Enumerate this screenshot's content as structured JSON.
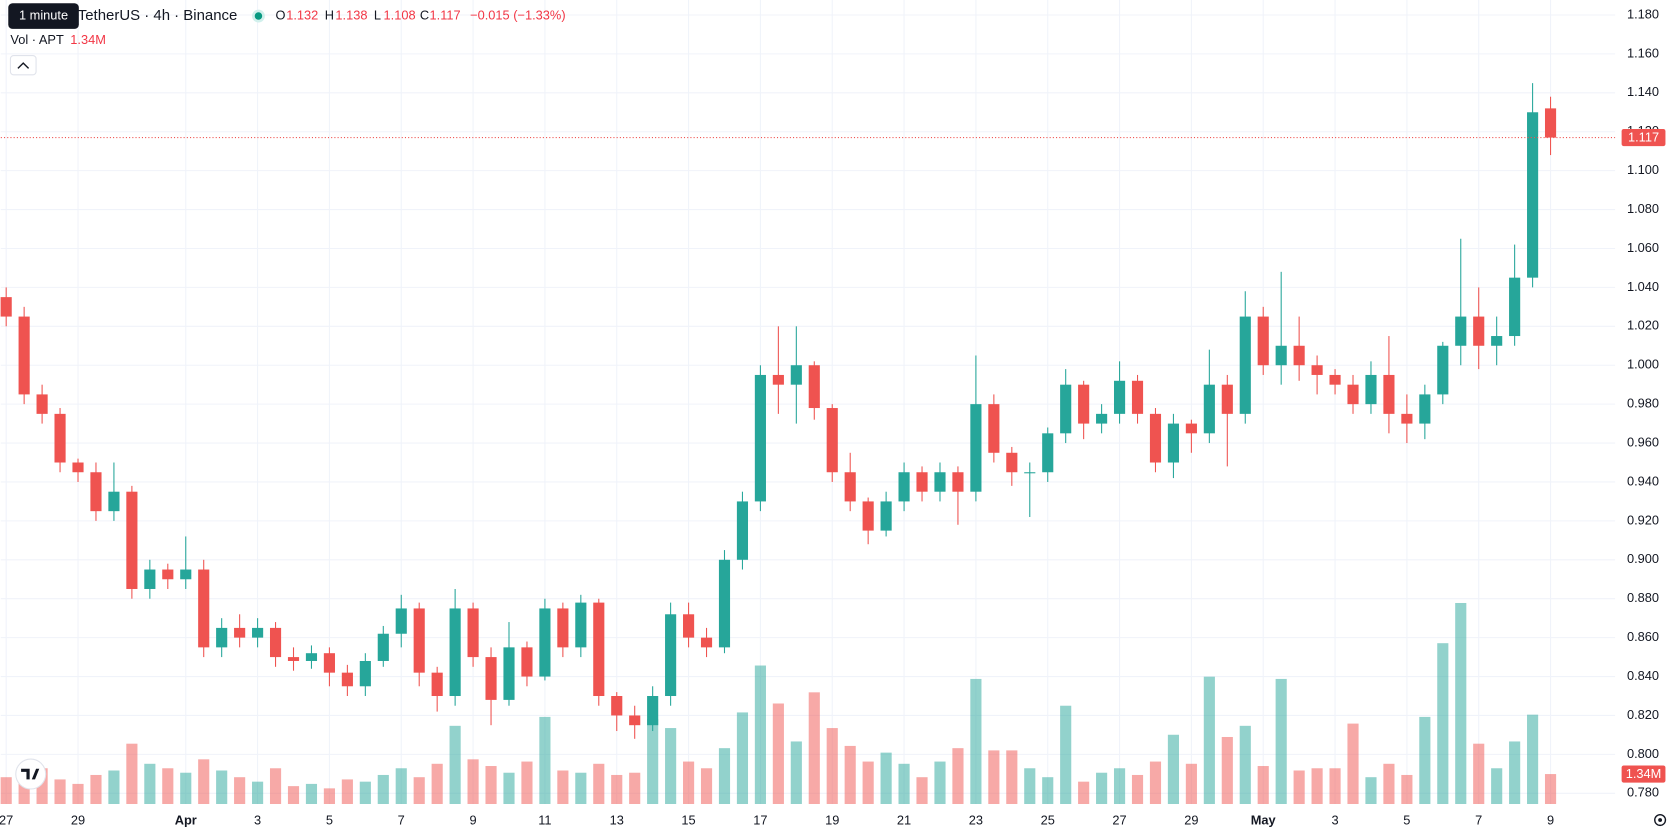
{
  "chart_data": {
    "type": "candlestick",
    "tooltip": "1 minute",
    "title": "TetherUS · 4h · Binance",
    "ohlc_letters": [
      "O",
      "H",
      "L",
      "C"
    ],
    "change": "−0.015 (−1.33%)",
    "volume_title": "Vol · APT",
    "volume_label": "1.34M",
    "colors": {
      "up": "#26a69a",
      "down": "#ef5350"
    },
    "grid": true,
    "last_price_line": true,
    "xlim": [
      -0.3,
      89.6
    ],
    "xticks": [
      {
        "value": 0,
        "label": "27"
      },
      {
        "value": 4,
        "label": "29"
      },
      {
        "value": 10,
        "label": "Apr"
      },
      {
        "value": 14,
        "label": "3"
      },
      {
        "value": 18,
        "label": "5"
      },
      {
        "value": 22,
        "label": "7"
      },
      {
        "value": 26,
        "label": "9"
      },
      {
        "value": 30,
        "label": "11"
      },
      {
        "value": 34,
        "label": "13"
      },
      {
        "value": 38,
        "label": "15"
      },
      {
        "value": 42,
        "label": "17"
      },
      {
        "value": 46,
        "label": "19"
      },
      {
        "value": 50,
        "label": "21"
      },
      {
        "value": 54,
        "label": "23"
      },
      {
        "value": 58,
        "label": "25"
      },
      {
        "value": 62,
        "label": "27"
      },
      {
        "value": 66,
        "label": "29"
      },
      {
        "value": 70,
        "label": "May"
      },
      {
        "value": 74,
        "label": "3"
      },
      {
        "value": 78,
        "label": "5"
      },
      {
        "value": 82,
        "label": "7"
      },
      {
        "value": 86,
        "label": "9"
      }
    ],
    "ylim": [
      0.7745,
      1.1877
    ],
    "yticks": [
      {
        "value": 0.78,
        "label": "0.780"
      },
      {
        "value": 0.8,
        "label": "0.800"
      },
      {
        "value": 0.82,
        "label": "0.820"
      },
      {
        "value": 0.84,
        "label": "0.840"
      },
      {
        "value": 0.86,
        "label": "0.860"
      },
      {
        "value": 0.88,
        "label": "0.880"
      },
      {
        "value": 0.9,
        "label": "0.900"
      },
      {
        "value": 0.92,
        "label": "0.920"
      },
      {
        "value": 0.94,
        "label": "0.940"
      },
      {
        "value": 0.96,
        "label": "0.960"
      },
      {
        "value": 0.98,
        "label": "0.980"
      },
      {
        "value": 1.0,
        "label": "1.000"
      },
      {
        "value": 1.02,
        "label": "1.020"
      },
      {
        "value": 1.04,
        "label": "1.040"
      },
      {
        "value": 1.06,
        "label": "1.060"
      },
      {
        "value": 1.08,
        "label": "1.080"
      },
      {
        "value": 1.1,
        "label": "1.100"
      },
      {
        "value": 1.12,
        "label": "1.120"
      },
      {
        "value": 1.14,
        "label": "1.140"
      },
      {
        "value": 1.16,
        "label": "1.160"
      },
      {
        "value": 1.18,
        "label": "1.180"
      }
    ],
    "volume_ylim": [
      0,
      36000000
    ],
    "open": [
      1.035,
      1.025,
      0.985,
      0.975,
      0.95,
      0.945,
      0.925,
      0.935,
      0.885,
      0.895,
      0.89,
      0.895,
      0.855,
      0.865,
      0.86,
      0.865,
      0.85,
      0.848,
      0.852,
      0.842,
      0.835,
      0.848,
      0.862,
      0.875,
      0.842,
      0.83,
      0.875,
      0.85,
      0.828,
      0.855,
      0.84,
      0.875,
      0.855,
      0.878,
      0.83,
      0.82,
      0.815,
      0.83,
      0.872,
      0.86,
      0.855,
      0.9,
      0.93,
      0.995,
      0.99,
      1.0,
      0.978,
      0.945,
      0.93,
      0.915,
      0.93,
      0.945,
      0.935,
      0.945,
      0.935,
      0.98,
      0.955,
      0.945,
      0.945,
      0.965,
      0.99,
      0.97,
      0.975,
      0.992,
      0.975,
      0.95,
      0.97,
      0.965,
      0.99,
      0.975,
      1.025,
      1.0,
      1.01,
      1.0,
      0.995,
      0.99,
      0.98,
      0.995,
      0.975,
      0.97,
      0.985,
      1.01,
      1.025,
      1.01,
      1.015,
      1.045,
      1.132
    ],
    "high": [
      1.04,
      1.03,
      0.99,
      0.978,
      0.952,
      0.95,
      0.95,
      0.938,
      0.9,
      0.898,
      0.912,
      0.9,
      0.87,
      0.872,
      0.87,
      0.868,
      0.855,
      0.856,
      0.855,
      0.846,
      0.852,
      0.866,
      0.882,
      0.878,
      0.845,
      0.885,
      0.878,
      0.855,
      0.868,
      0.858,
      0.88,
      0.878,
      0.882,
      0.88,
      0.832,
      0.825,
      0.835,
      0.878,
      0.878,
      0.865,
      0.905,
      0.935,
      1.0,
      1.02,
      1.02,
      1.002,
      0.98,
      0.955,
      0.932,
      0.935,
      0.95,
      0.948,
      0.95,
      0.948,
      1.005,
      0.985,
      0.958,
      0.95,
      0.968,
      0.998,
      0.992,
      0.98,
      1.002,
      0.995,
      0.978,
      0.975,
      0.972,
      1.008,
      0.995,
      1.038,
      1.03,
      1.048,
      1.025,
      1.005,
      0.998,
      0.995,
      1.002,
      1.015,
      0.985,
      0.99,
      1.012,
      1.065,
      1.04,
      1.025,
      1.062,
      1.145,
      1.138
    ],
    "low": [
      1.02,
      0.98,
      0.97,
      0.945,
      0.94,
      0.92,
      0.92,
      0.88,
      0.88,
      0.885,
      0.885,
      0.85,
      0.85,
      0.855,
      0.855,
      0.845,
      0.843,
      0.844,
      0.835,
      0.83,
      0.83,
      0.845,
      0.855,
      0.835,
      0.822,
      0.825,
      0.845,
      0.815,
      0.825,
      0.835,
      0.838,
      0.85,
      0.85,
      0.825,
      0.812,
      0.808,
      0.812,
      0.825,
      0.855,
      0.85,
      0.852,
      0.895,
      0.925,
      0.975,
      0.97,
      0.972,
      0.94,
      0.925,
      0.908,
      0.912,
      0.925,
      0.93,
      0.93,
      0.918,
      0.93,
      0.95,
      0.938,
      0.922,
      0.94,
      0.96,
      0.962,
      0.965,
      0.97,
      0.97,
      0.945,
      0.942,
      0.955,
      0.96,
      0.948,
      0.97,
      0.995,
      0.99,
      0.992,
      0.985,
      0.985,
      0.975,
      0.975,
      0.965,
      0.96,
      0.962,
      0.98,
      1.0,
      0.998,
      1.0,
      1.01,
      1.04,
      1.108
    ],
    "close": [
      1.025,
      0.985,
      0.975,
      0.95,
      0.945,
      0.925,
      0.935,
      0.885,
      0.895,
      0.89,
      0.895,
      0.855,
      0.865,
      0.86,
      0.865,
      0.85,
      0.848,
      0.852,
      0.842,
      0.835,
      0.848,
      0.862,
      0.875,
      0.842,
      0.83,
      0.875,
      0.85,
      0.828,
      0.855,
      0.84,
      0.875,
      0.855,
      0.878,
      0.83,
      0.82,
      0.815,
      0.83,
      0.872,
      0.86,
      0.855,
      0.9,
      0.93,
      0.995,
      0.99,
      1.0,
      0.978,
      0.945,
      0.93,
      0.915,
      0.93,
      0.945,
      0.935,
      0.945,
      0.935,
      0.98,
      0.955,
      0.945,
      0.945,
      0.965,
      0.99,
      0.97,
      0.975,
      0.992,
      0.975,
      0.95,
      0.97,
      0.965,
      0.99,
      0.975,
      1.025,
      1.0,
      1.01,
      1.0,
      0.995,
      0.99,
      0.98,
      0.995,
      0.975,
      0.97,
      0.985,
      1.01,
      1.025,
      1.01,
      1.015,
      1.045,
      1.13,
      1.117
    ],
    "volume": [
      1200000,
      1000000,
      1600000,
      1100000,
      900000,
      1300000,
      1500000,
      2700000,
      1800000,
      1600000,
      1400000,
      2000000,
      1500000,
      1200000,
      1000000,
      1600000,
      800000,
      900000,
      700000,
      1100000,
      1000000,
      1300000,
      1600000,
      1200000,
      1800000,
      3500000,
      2000000,
      1700000,
      1400000,
      1900000,
      3900000,
      1500000,
      1400000,
      1800000,
      1300000,
      1400000,
      3800000,
      3400000,
      1900000,
      1600000,
      2500000,
      4100000,
      6200000,
      4500000,
      2800000,
      5000000,
      3400000,
      2600000,
      1900000,
      2300000,
      1800000,
      1200000,
      1900000,
      2500000,
      5600000,
      2400000,
      2400000,
      1600000,
      1200000,
      4400000,
      1000000,
      1400000,
      1600000,
      1300000,
      1900000,
      3100000,
      1800000,
      5700000,
      3000000,
      3500000,
      1700000,
      5600000,
      1500000,
      1600000,
      1600000,
      3600000,
      1200000,
      1800000,
      1300000,
      3900000,
      7200000,
      9000000,
      2700000,
      1600000,
      2800000,
      4000000,
      1340000
    ]
  }
}
